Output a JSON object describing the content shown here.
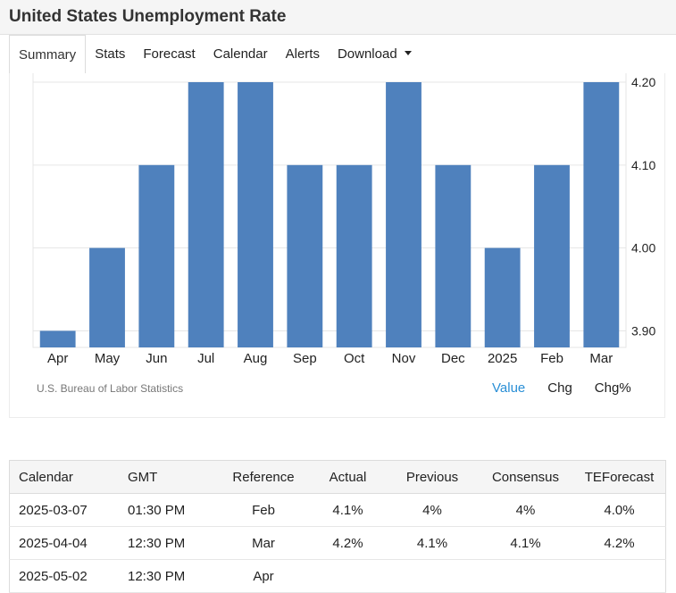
{
  "header": {
    "title": "United States Unemployment Rate"
  },
  "tabs": [
    {
      "label": "Summary",
      "active": true
    },
    {
      "label": "Stats"
    },
    {
      "label": "Forecast"
    },
    {
      "label": "Calendar"
    },
    {
      "label": "Alerts"
    },
    {
      "label": "Download",
      "dropdown": true
    }
  ],
  "colors": {
    "bar": "#4f81bd",
    "accent": "#2a8fd6"
  },
  "chart_data": {
    "type": "bar",
    "categories": [
      "Apr",
      "May",
      "Jun",
      "Jul",
      "Aug",
      "Sep",
      "Oct",
      "Nov",
      "Dec",
      "2025",
      "Feb",
      "Mar"
    ],
    "values": [
      3.9,
      4.0,
      4.1,
      4.2,
      4.2,
      4.1,
      4.1,
      4.2,
      4.1,
      4.0,
      4.1,
      4.2
    ],
    "ylim": [
      3.88,
      4.2
    ],
    "yticks": [
      "4.20",
      "4.10",
      "4.00",
      "3.90"
    ],
    "ytick_values": [
      4.2,
      4.1,
      4.0,
      3.9
    ],
    "grid": true,
    "source": "U.S. Bureau of Labor Statistics"
  },
  "chart_modes": [
    {
      "label": "Value",
      "active": true
    },
    {
      "label": "Chg"
    },
    {
      "label": "Chg%"
    }
  ],
  "calendar": {
    "headers": [
      "Calendar",
      "GMT",
      "Reference",
      "Actual",
      "Previous",
      "Consensus",
      "TEForecast"
    ],
    "rows": [
      [
        "2025-03-07",
        "01:30 PM",
        "Feb",
        "4.1%",
        "4%",
        "4%",
        "4.0%"
      ],
      [
        "2025-04-04",
        "12:30 PM",
        "Mar",
        "4.2%",
        "4.1%",
        "4.1%",
        "4.2%"
      ],
      [
        "2025-05-02",
        "12:30 PM",
        "Apr",
        "",
        "",
        "",
        ""
      ]
    ]
  }
}
